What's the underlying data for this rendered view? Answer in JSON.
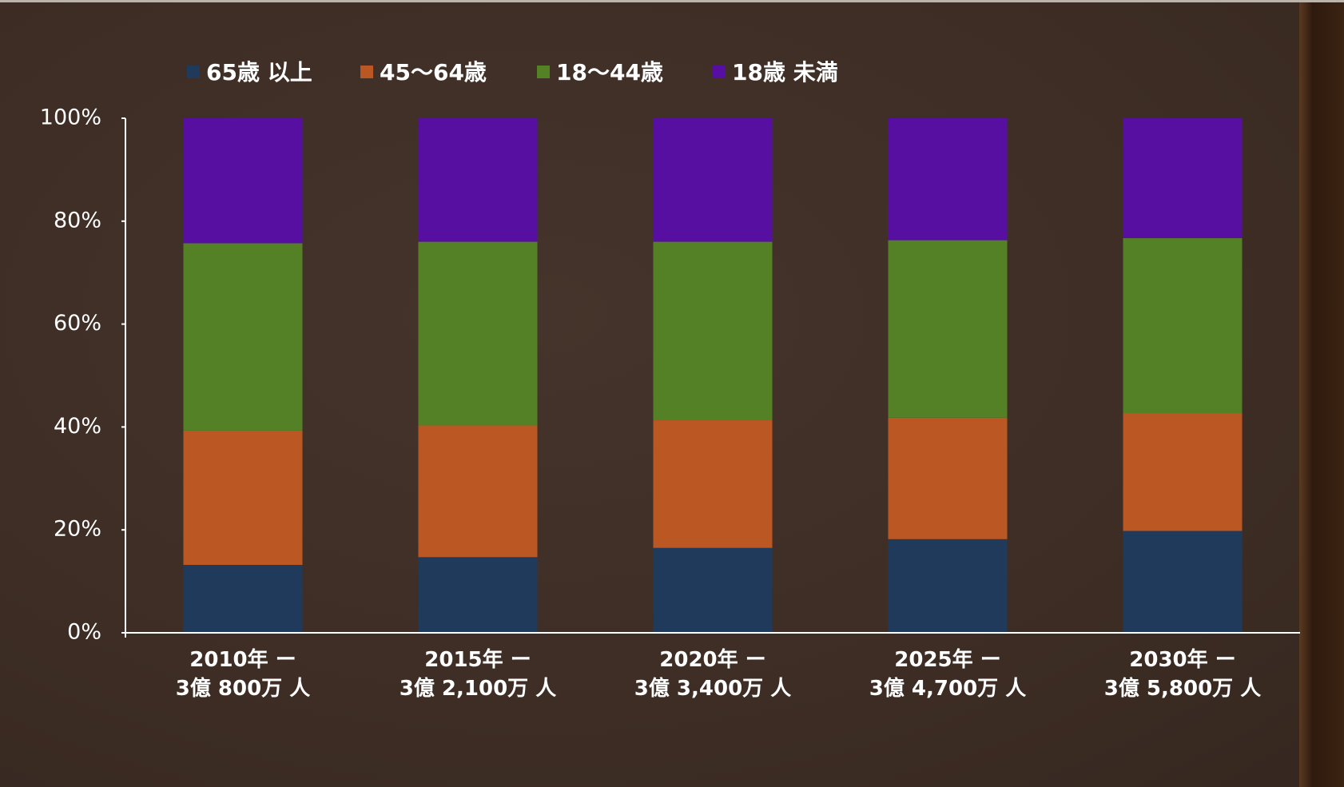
{
  "chart_data": {
    "type": "stacked_bar",
    "categories": [
      "2010年 ー\n3億 800万 人",
      "2015年 ー\n3億 2,100万 人",
      "2020年 ー\n3億 3,400万 人",
      "2025年 ー\n3億 4,700万 人",
      "2030年 ー\n3億 5,800万 人"
    ],
    "series": [
      {
        "name": "65歳 以上",
        "color": "#1f3a5a",
        "values": [
          13.2,
          14.7,
          16.5,
          18.2,
          19.8
        ]
      },
      {
        "name": "45～64歳",
        "color": "#bb5722",
        "values": [
          26.1,
          25.6,
          24.8,
          23.6,
          22.9
        ]
      },
      {
        "name": "18～44歳",
        "color": "#548026",
        "values": [
          36.4,
          35.7,
          34.7,
          34.5,
          34.0
        ]
      },
      {
        "name": "18歳 未満",
        "color": "#560fa0",
        "values": [
          24.3,
          24.0,
          24.0,
          23.7,
          23.3
        ]
      }
    ],
    "ylim": [
      0,
      100
    ],
    "yticks": [
      {
        "value": 0,
        "label": "0%"
      },
      {
        "value": 20,
        "label": "20%"
      },
      {
        "value": 40,
        "label": "40%"
      },
      {
        "value": 60,
        "label": "60%"
      },
      {
        "value": 80,
        "label": "80%"
      },
      {
        "value": 100,
        "label": "100%"
      }
    ],
    "legend": "top"
  }
}
